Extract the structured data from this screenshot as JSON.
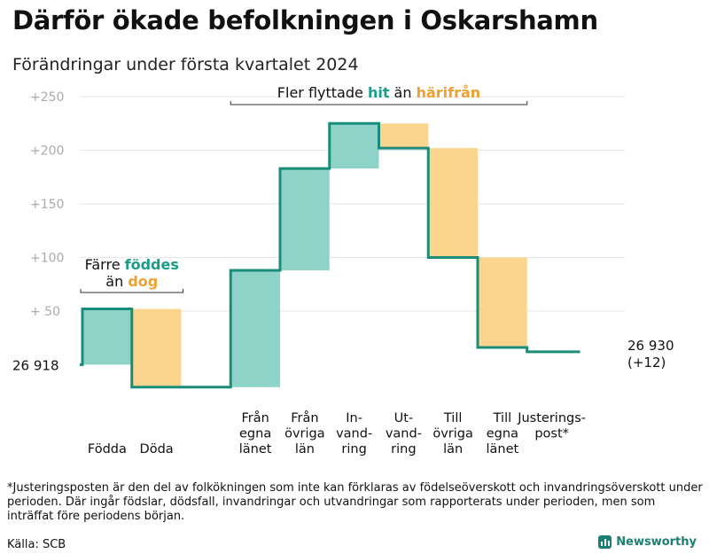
{
  "title": "Därför ökade befolkningen i Oskarshamn",
  "subtitle": "Förändringar under första kvartalet 2024",
  "footnote": "*Justeringsposten är den del av folkökningen som inte kan förklaras av födelseöverskott och invandringsöverskott under perioden. Där ingår födslar, dödsfall, invandringar och utvandringar som rapporterats under perioden, men som inträffat före periodens början.",
  "source": "Källa: SCB",
  "logo_text": "Newsworthy",
  "colors": {
    "increase": "#8dd3c7",
    "decrease": "#fbd58d",
    "line": "#1a8c7a",
    "hit": "#1a9c8a",
    "harifran": "#f0a030",
    "grid": "#e5e5e5",
    "tick": "#aaaaaa"
  },
  "chart_data": {
    "type": "waterfall",
    "baseline": 26918,
    "start_label": "26  918",
    "end_label_value": "26 930",
    "end_label_change": "(+12)",
    "ylim": [
      -22,
      255
    ],
    "y_ticks": [
      {
        "value": 50,
        "label": "+  50"
      },
      {
        "value": 100,
        "label": "+100"
      },
      {
        "value": 150,
        "label": "+150"
      },
      {
        "value": 200,
        "label": "+200"
      },
      {
        "value": 250,
        "label": "+250"
      }
    ],
    "steps": [
      {
        "category": "Födda",
        "label_lines": [
          "Födda"
        ],
        "change": 52
      },
      {
        "category": "Döda",
        "label_lines": [
          "Döda"
        ],
        "change": -73
      },
      {
        "category": "Från egna länet",
        "label_lines": [
          "Från",
          "egna",
          "länet"
        ],
        "change": 109
      },
      {
        "category": "Från övriga län",
        "label_lines": [
          "Från",
          "övriga",
          "län"
        ],
        "change": 95
      },
      {
        "category": "Invandring",
        "label_lines": [
          "In-",
          "vand-",
          "ring"
        ],
        "change": 42
      },
      {
        "category": "Utvandring",
        "label_lines": [
          "Ut-",
          "vand-",
          "ring"
        ],
        "change": -23
      },
      {
        "category": "Till övriga län",
        "label_lines": [
          "Till",
          "övriga",
          "län"
        ],
        "change": -102
      },
      {
        "category": "Till egna länet",
        "label_lines": [
          "Till",
          "egna",
          "länet"
        ],
        "change": -84
      },
      {
        "category": "Justeringspost*",
        "label_lines": [
          "Justerings-",
          "post*"
        ],
        "change": -4
      }
    ],
    "annotations": [
      {
        "lines": [
          [
            "Färre ",
            "föddes",
            "hit"
          ],
          [
            "än ",
            "dog",
            "harifran"
          ]
        ],
        "span": [
          0,
          1
        ],
        "value": 79
      },
      {
        "lines": [
          [
            "Fler flyttade ",
            "hit",
            "hit"
          ],
          [
            " än ",
            "härifrån",
            "harifran"
          ]
        ],
        "span": [
          2,
          7
        ],
        "value": 245
      }
    ]
  }
}
